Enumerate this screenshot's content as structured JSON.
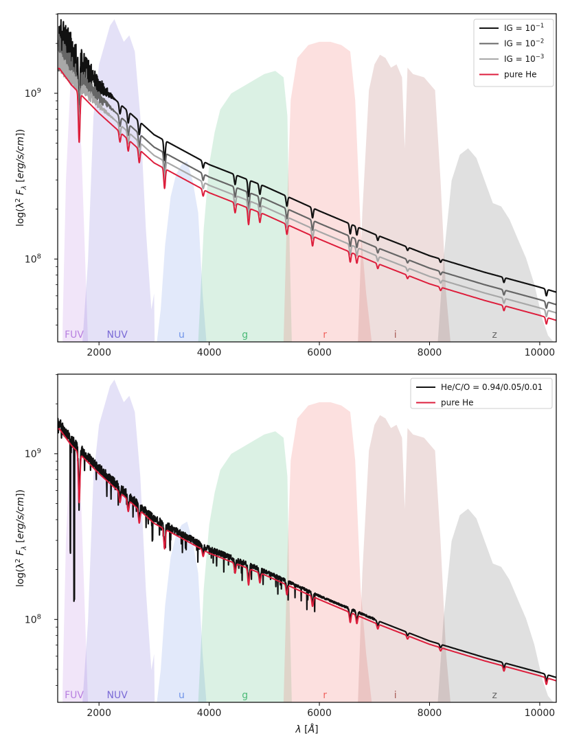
{
  "chart_data": [
    {
      "type": "line",
      "xlabel_parts": [
        "λ",
        "[",
        "Å",
        "]"
      ],
      "ylabel_parts": [
        "log(λ",
        "2",
        "F",
        "λ",
        "[",
        "erg/s/cm",
        "])"
      ],
      "xlim": [
        1250,
        10300
      ],
      "ylim_log10": [
        7.5,
        9.48
      ],
      "x_ticks": [
        2000,
        4000,
        6000,
        8000,
        10000
      ],
      "x_tick_labels": [
        "2000",
        "4000",
        "6000",
        "8000",
        "10000"
      ],
      "y_ticks": [
        8,
        9
      ],
      "y_tick_base": "10",
      "y_tick_exps": [
        "8",
        "9"
      ],
      "filters": [
        {
          "name": "FUV",
          "color": "#b77fe0",
          "label_x": 1550,
          "curve": [
            [
              1340,
              0.05
            ],
            [
              1400,
              0.5
            ],
            [
              1480,
              0.8
            ],
            [
              1540,
              0.82
            ],
            [
              1600,
              0.75
            ],
            [
              1680,
              0.6
            ],
            [
              1760,
              0.2
            ],
            [
              1800,
              0.0
            ]
          ]
        },
        {
          "name": "NUV",
          "color": "#7a6ad6",
          "label_x": 2330,
          "curve": [
            [
              1700,
              0.0
            ],
            [
              1800,
              0.25
            ],
            [
              1900,
              0.7
            ],
            [
              2000,
              0.86
            ],
            [
              2100,
              0.92
            ],
            [
              2200,
              0.98
            ],
            [
              2280,
              1.0
            ],
            [
              2350,
              0.97
            ],
            [
              2450,
              0.93
            ],
            [
              2550,
              0.95
            ],
            [
              2650,
              0.9
            ],
            [
              2750,
              0.7
            ],
            [
              2850,
              0.35
            ],
            [
              2950,
              0.1
            ],
            [
              3000,
              0.15
            ],
            [
              3010,
              0.0
            ]
          ]
        },
        {
          "name": "u",
          "color": "#6e93e8",
          "label_x": 3500,
          "curve": [
            [
              3050,
              0.0
            ],
            [
              3120,
              0.1
            ],
            [
              3200,
              0.3
            ],
            [
              3300,
              0.45
            ],
            [
              3400,
              0.52
            ],
            [
              3500,
              0.55
            ],
            [
              3600,
              0.56
            ],
            [
              3700,
              0.5
            ],
            [
              3800,
              0.4
            ],
            [
              3880,
              0.15
            ],
            [
              3950,
              0.0
            ]
          ]
        },
        {
          "name": "g",
          "color": "#4dba78",
          "label_x": 4650,
          "curve": [
            [
              3800,
              0.0
            ],
            [
              3900,
              0.35
            ],
            [
              4000,
              0.55
            ],
            [
              4100,
              0.65
            ],
            [
              4200,
              0.72
            ],
            [
              4400,
              0.77
            ],
            [
              4600,
              0.79
            ],
            [
              4800,
              0.81
            ],
            [
              5000,
              0.83
            ],
            [
              5200,
              0.84
            ],
            [
              5350,
              0.82
            ],
            [
              5420,
              0.7
            ],
            [
              5460,
              0.3
            ],
            [
              5500,
              0.0
            ]
          ]
        },
        {
          "name": "r",
          "color": "#f0625e",
          "label_x": 6100,
          "curve": [
            [
              5350,
              0.0
            ],
            [
              5420,
              0.45
            ],
            [
              5480,
              0.75
            ],
            [
              5600,
              0.88
            ],
            [
              5800,
              0.92
            ],
            [
              6000,
              0.93
            ],
            [
              6200,
              0.93
            ],
            [
              6400,
              0.92
            ],
            [
              6560,
              0.9
            ],
            [
              6650,
              0.75
            ],
            [
              6750,
              0.35
            ],
            [
              6850,
              0.15
            ],
            [
              6950,
              0.0
            ]
          ]
        },
        {
          "name": "i",
          "color": "#a85a55",
          "label_x": 7380,
          "curve": [
            [
              6700,
              0.0
            ],
            [
              6780,
              0.4
            ],
            [
              6900,
              0.78
            ],
            [
              7000,
              0.86
            ],
            [
              7100,
              0.89
            ],
            [
              7200,
              0.88
            ],
            [
              7300,
              0.85
            ],
            [
              7400,
              0.86
            ],
            [
              7500,
              0.82
            ],
            [
              7550,
              0.6
            ],
            [
              7600,
              0.85
            ],
            [
              7700,
              0.83
            ],
            [
              7900,
              0.82
            ],
            [
              8100,
              0.78
            ],
            [
              8200,
              0.5
            ],
            [
              8300,
              0.15
            ],
            [
              8380,
              0.0
            ]
          ]
        },
        {
          "name": "z",
          "color": "#666666",
          "label_x": 9180,
          "curve": [
            [
              8150,
              0.0
            ],
            [
              8250,
              0.25
            ],
            [
              8400,
              0.5
            ],
            [
              8550,
              0.58
            ],
            [
              8700,
              0.6
            ],
            [
              8850,
              0.57
            ],
            [
              9000,
              0.5
            ],
            [
              9150,
              0.43
            ],
            [
              9300,
              0.42
            ],
            [
              9450,
              0.38
            ],
            [
              9600,
              0.32
            ],
            [
              9750,
              0.26
            ],
            [
              9900,
              0.18
            ],
            [
              10050,
              0.07
            ],
            [
              10150,
              0.02
            ],
            [
              10250,
              0.0
            ]
          ]
        }
      ],
      "series": [
        {
          "name_parts": [
            "IG = 10",
            "−1"
          ],
          "color": "#111111",
          "width": 2.2,
          "offset": 0.17,
          "uv_noise": 0.35
        },
        {
          "name_parts": [
            "IG = 10",
            "−2"
          ],
          "color": "#666666",
          "width": 2.2,
          "offset": 0.095,
          "uv_noise": 0.22
        },
        {
          "name_parts": [
            "IG = 10",
            "−3"
          ],
          "color": "#a8a8a8",
          "width": 2.2,
          "offset": 0.045,
          "uv_noise": 0.12
        },
        {
          "name_parts": [
            "pure He",
            ""
          ],
          "color": "#dd1e3c",
          "width": 2.0,
          "offset": 0.0,
          "uv_noise": 0.0
        }
      ],
      "base_curve": [
        [
          1280,
          9.15
        ],
        [
          1500,
          9.05
        ],
        [
          2000,
          8.88
        ],
        [
          3000,
          8.58
        ],
        [
          4000,
          8.4
        ],
        [
          5000,
          8.27
        ],
        [
          6000,
          8.12
        ],
        [
          7000,
          7.98
        ],
        [
          8000,
          7.85
        ],
        [
          9000,
          7.75
        ],
        [
          10000,
          7.66
        ],
        [
          10300,
          7.63
        ]
      ],
      "He_lines": [
        [
          1640,
          0.3
        ],
        [
          2380,
          0.06
        ],
        [
          2530,
          0.07
        ],
        [
          2730,
          0.08
        ],
        [
          3190,
          0.12
        ],
        [
          3890,
          0.04
        ],
        [
          4470,
          0.06
        ],
        [
          4715,
          0.1
        ],
        [
          4920,
          0.06
        ],
        [
          5410,
          0.06
        ],
        [
          5876,
          0.06
        ],
        [
          6560,
          0.06
        ],
        [
          6680,
          0.05
        ],
        [
          7060,
          0.03
        ],
        [
          7600,
          0.02
        ],
        [
          8200,
          0.02
        ],
        [
          9350,
          0.03
        ],
        [
          10120,
          0.04
        ]
      ],
      "legend_position": "top-right"
    },
    {
      "type": "line",
      "xlabel_parts": [
        "λ",
        "[",
        "Å",
        "]"
      ],
      "ylabel_parts": [
        "log(λ",
        "2",
        "F",
        "λ",
        "[",
        "erg/s/cm",
        "])"
      ],
      "xlim": [
        1250,
        10300
      ],
      "ylim_log10": [
        7.5,
        9.48
      ],
      "x_ticks": [
        2000,
        4000,
        6000,
        8000,
        10000
      ],
      "x_tick_labels": [
        "2000",
        "4000",
        "6000",
        "8000",
        "10000"
      ],
      "y_ticks": [
        8,
        9
      ],
      "y_tick_base": "10",
      "y_tick_exps": [
        "8",
        "9"
      ],
      "series": [
        {
          "name_parts": [
            "He/C/O = 0.94/0.05/0.01",
            ""
          ],
          "color": "#111111",
          "width": 2.2,
          "offset": 0.02,
          "metal": true
        },
        {
          "name_parts": [
            "pure He",
            ""
          ],
          "color": "#dd1e3c",
          "width": 2.0,
          "offset": 0.0,
          "metal": false
        }
      ],
      "legend_position": "top-right"
    }
  ]
}
